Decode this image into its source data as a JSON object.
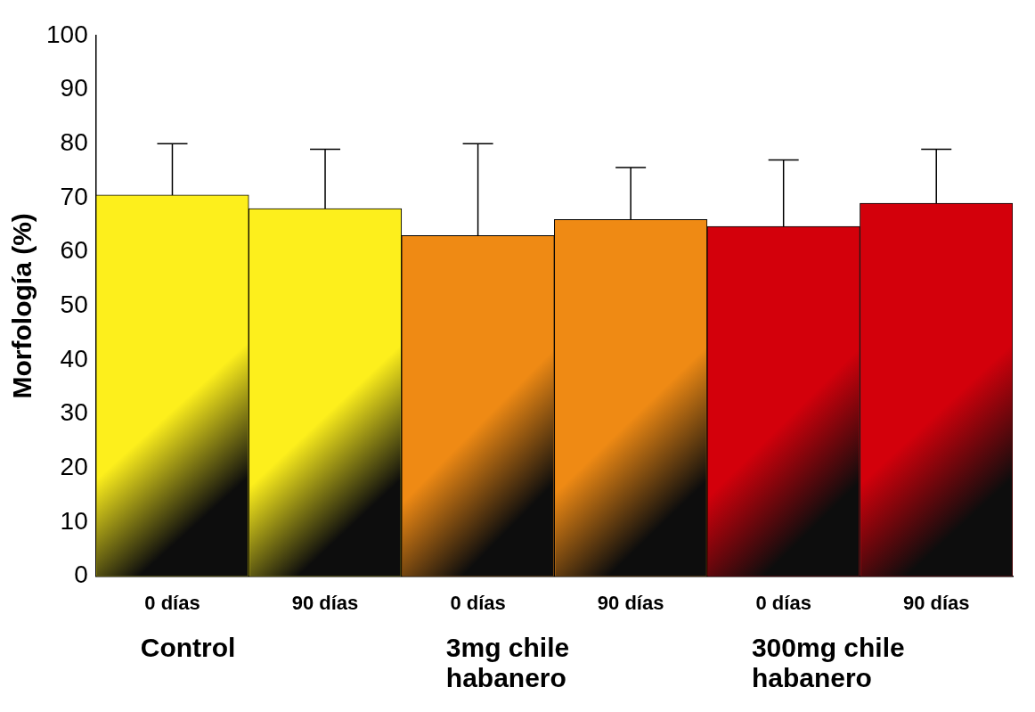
{
  "chart_data": {
    "type": "bar",
    "ylabel": "Morfología (%)",
    "categories": [
      "0 días",
      "90 días",
      "0 días",
      "90 días",
      "0 días",
      "90 días"
    ],
    "values": [
      70.5,
      68,
      63,
      66,
      64.7,
      69
    ],
    "errors": [
      [
        70.5,
        80
      ],
      [
        68,
        79
      ],
      [
        63,
        80
      ],
      [
        66,
        75.6
      ],
      [
        64.7,
        77
      ],
      [
        69,
        79
      ]
    ],
    "colors": [
      "#fdef1c",
      "#fdef1c",
      "#ef8a14",
      "#ef8a14",
      "#d3000b",
      "#d3000b"
    ],
    "ylim": [
      0,
      100
    ],
    "yticks": [
      0,
      10,
      20,
      30,
      40,
      50,
      60,
      70,
      80,
      90,
      100
    ],
    "grid": false,
    "legend": false,
    "annotations": [
      "Control",
      "3mg chile habanero",
      "300mg chile habanero"
    ]
  }
}
